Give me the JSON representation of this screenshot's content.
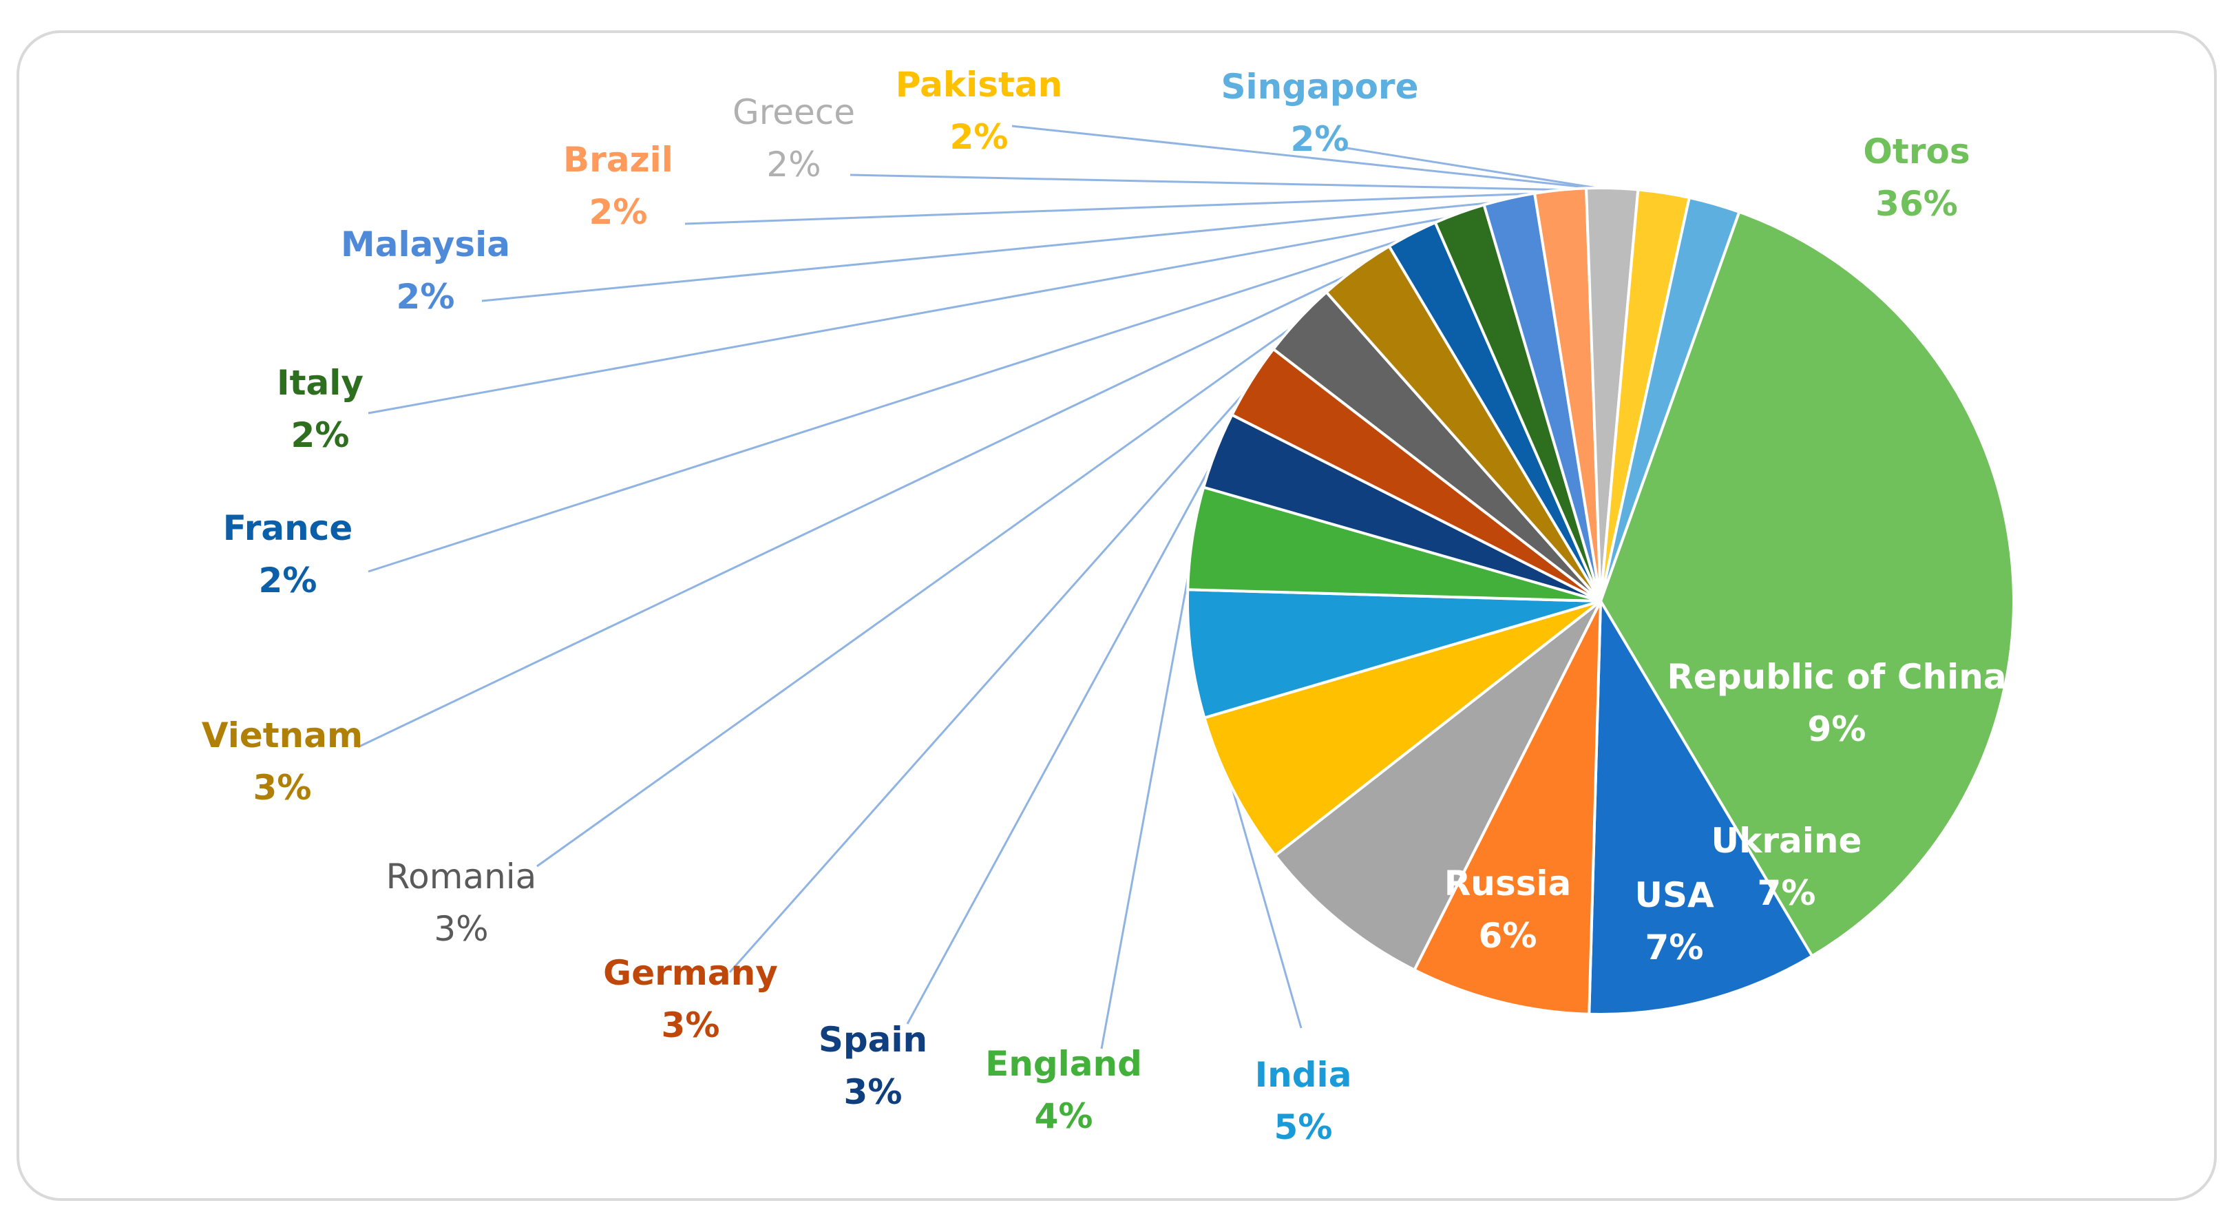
{
  "chart_data": {
    "type": "pie",
    "start_angle_deg": 19.6,
    "direction": "clockwise",
    "slices": [
      {
        "label": "Otros",
        "value": 36,
        "value_label": "36%",
        "color": "#70c05c",
        "label_color": "#70c05c",
        "label_inside": false,
        "leader": false
      },
      {
        "label": "Republic of China",
        "value": 9,
        "value_label": "9%",
        "color": "#1870c8",
        "label_color": "#ffffff",
        "label_inside": true,
        "leader": false
      },
      {
        "label": "Ukraine",
        "value": 7,
        "value_label": "7%",
        "color": "#fd7e25",
        "label_color": "#ffffff",
        "label_inside": true,
        "leader": false
      },
      {
        "label": "USA",
        "value": 7,
        "value_label": "7%",
        "color": "#a6a6a6",
        "label_color": "#ffffff",
        "label_inside": true,
        "leader": false
      },
      {
        "label": "Russia",
        "value": 6,
        "value_label": "6%",
        "color": "#ffc000",
        "label_color": "#ffffff",
        "label_inside": true,
        "leader": false
      },
      {
        "label": "India",
        "value": 5,
        "value_label": "5%",
        "color": "#1a9ad6",
        "label_color": "#1a9ad6",
        "label_inside": false,
        "leader": true
      },
      {
        "label": "England",
        "value": 4,
        "value_label": "4%",
        "color": "#43b03b",
        "label_color": "#43b03b",
        "label_inside": false,
        "leader": true
      },
      {
        "label": "Spain",
        "value": 3,
        "value_label": "3%",
        "color": "#0f3f7f",
        "label_color": "#0f3f7f",
        "label_inside": false,
        "leader": true
      },
      {
        "label": "Germany",
        "value": 3,
        "value_label": "3%",
        "color": "#c0470a",
        "label_color": "#c0470a",
        "label_inside": false,
        "leader": true
      },
      {
        "label": "Romania",
        "value": 3,
        "value_label": "3%",
        "color": "#636363",
        "label_color": "#5a5a5a",
        "label_inside": false,
        "leader": true,
        "light": true
      },
      {
        "label": "Vietnam",
        "value": 3,
        "value_label": "3%",
        "color": "#b07f06",
        "label_color": "#b07f06",
        "label_inside": false,
        "leader": true
      },
      {
        "label": "France",
        "value": 2,
        "value_label": "2%",
        "color": "#0b5ea8",
        "label_color": "#0b5ea8",
        "label_inside": false,
        "leader": true
      },
      {
        "label": "Italy",
        "value": 2,
        "value_label": "2%",
        "color": "#2e6e1f",
        "label_color": "#2e6e1f",
        "label_inside": false,
        "leader": true
      },
      {
        "label": "Malaysia",
        "value": 2,
        "value_label": "2%",
        "color": "#4f8ad8",
        "label_color": "#4f8ad8",
        "label_inside": false,
        "leader": true
      },
      {
        "label": "Brazil",
        "value": 2,
        "value_label": "2%",
        "color": "#fd9a5c",
        "label_color": "#fd9a5c",
        "label_inside": false,
        "leader": true
      },
      {
        "label": "Greece",
        "value": 2,
        "value_label": "2%",
        "color": "#bcbcbc",
        "label_color": "#b0b0b0",
        "label_inside": false,
        "leader": true,
        "light": true
      },
      {
        "label": "Pakistan",
        "value": 2,
        "value_label": "2%",
        "color": "#ffcc28",
        "label_color": "#ffc000",
        "label_inside": false,
        "leader": true
      },
      {
        "label": "Singapore",
        "value": 2,
        "value_label": "2%",
        "color": "#5dafe0",
        "label_color": "#5dafe0",
        "label_inside": false,
        "leader": true
      }
    ],
    "leader_line_color": "#8fb4e3"
  }
}
